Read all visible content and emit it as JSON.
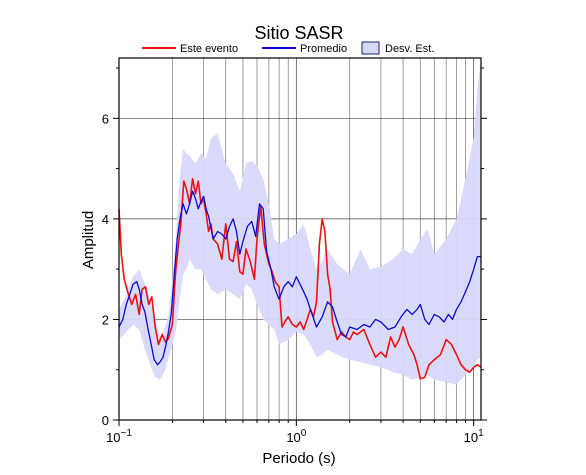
{
  "chart_data": {
    "type": "line",
    "title": "Sitio SASR",
    "xlabel": "Periodo (s)",
    "ylabel": "Amplitud",
    "xscale": "log",
    "xlim": [
      0.1,
      11
    ],
    "ylim": [
      0,
      7.2
    ],
    "grid": true,
    "legend_position": "top",
    "x_ticks": [
      {
        "value": 0.1,
        "base": "10",
        "exp": "−1"
      },
      {
        "value": 1,
        "base": "10",
        "exp": "0"
      },
      {
        "value": 10,
        "base": "10",
        "exp": "1"
      }
    ],
    "y_ticks": [
      {
        "value": 0,
        "label": "0"
      },
      {
        "value": 2,
        "label": "2"
      },
      {
        "value": 4,
        "label": "4"
      },
      {
        "value": 6,
        "label": "6"
      }
    ],
    "legend": {
      "este": "Este evento",
      "promedio": "Promedio",
      "desv": "Desv. Est."
    },
    "colors": {
      "este": "#ee1111",
      "promedio": "#0b0bd6",
      "band_fill": "#d8d8fb",
      "band_edge": "#1a1a8a"
    },
    "series": [
      {
        "name": "Este evento",
        "x": [
          0.1,
          0.103,
          0.107,
          0.112,
          0.118,
          0.124,
          0.13,
          0.135,
          0.141,
          0.147,
          0.153,
          0.16,
          0.167,
          0.175,
          0.183,
          0.19,
          0.2,
          0.208,
          0.215,
          0.223,
          0.232,
          0.24,
          0.25,
          0.26,
          0.27,
          0.28,
          0.29,
          0.3,
          0.31,
          0.32,
          0.33,
          0.34,
          0.36,
          0.38,
          0.4,
          0.42,
          0.44,
          0.46,
          0.48,
          0.5,
          0.52,
          0.55,
          0.58,
          0.6,
          0.63,
          0.66,
          0.7,
          0.73,
          0.76,
          0.8,
          0.83,
          0.86,
          0.9,
          0.95,
          1.0,
          1.05,
          1.1,
          1.15,
          1.2,
          1.25,
          1.3,
          1.35,
          1.4,
          1.45,
          1.5,
          1.55,
          1.6,
          1.7,
          1.8,
          1.9,
          2.0,
          2.1,
          2.2,
          2.4,
          2.6,
          2.8,
          3.0,
          3.2,
          3.4,
          3.6,
          3.8,
          4.0,
          4.3,
          4.6,
          4.8,
          5.0,
          5.3,
          5.6,
          6.0,
          6.5,
          7.0,
          7.5,
          8.0,
          8.5,
          9.0,
          9.5,
          10.0,
          10.5,
          11.0
        ],
        "y": [
          4.2,
          3.3,
          2.8,
          2.55,
          2.3,
          2.5,
          2.1,
          2.6,
          2.65,
          2.3,
          2.45,
          1.85,
          1.5,
          1.7,
          1.55,
          1.62,
          1.9,
          2.9,
          3.4,
          3.9,
          4.75,
          4.6,
          4.3,
          4.8,
          4.5,
          4.75,
          4.3,
          4.4,
          4.1,
          3.75,
          3.9,
          3.6,
          3.5,
          3.2,
          3.9,
          3.2,
          3.15,
          3.55,
          2.95,
          2.9,
          3.4,
          3.15,
          2.8,
          3.6,
          4.25,
          3.5,
          3.1,
          2.95,
          2.75,
          2.65,
          1.85,
          1.95,
          2.05,
          1.9,
          1.85,
          1.95,
          1.8,
          2.0,
          2.2,
          2.05,
          2.35,
          3.5,
          4.0,
          3.75,
          2.9,
          2.6,
          1.95,
          1.6,
          1.75,
          1.65,
          1.6,
          1.75,
          1.7,
          1.8,
          1.5,
          1.25,
          1.35,
          1.25,
          1.65,
          1.45,
          1.6,
          1.85,
          1.5,
          1.3,
          1.1,
          0.82,
          0.85,
          1.1,
          1.2,
          1.3,
          1.6,
          1.5,
          1.3,
          1.1,
          1.0,
          0.95,
          1.05,
          1.1,
          1.05
        ]
      },
      {
        "name": "Promedio",
        "x": [
          0.1,
          0.105,
          0.11,
          0.115,
          0.12,
          0.126,
          0.13,
          0.135,
          0.14,
          0.146,
          0.152,
          0.158,
          0.165,
          0.17,
          0.177,
          0.184,
          0.19,
          0.197,
          0.205,
          0.213,
          0.222,
          0.23,
          0.24,
          0.25,
          0.26,
          0.27,
          0.28,
          0.29,
          0.3,
          0.31,
          0.32,
          0.34,
          0.36,
          0.38,
          0.4,
          0.42,
          0.44,
          0.46,
          0.48,
          0.5,
          0.53,
          0.56,
          0.59,
          0.62,
          0.65,
          0.68,
          0.72,
          0.75,
          0.8,
          0.85,
          0.9,
          0.95,
          1.0,
          1.05,
          1.1,
          1.15,
          1.2,
          1.3,
          1.4,
          1.5,
          1.6,
          1.7,
          1.8,
          1.9,
          2.0,
          2.2,
          2.4,
          2.6,
          2.8,
          3.0,
          3.3,
          3.6,
          3.9,
          4.2,
          4.5,
          4.8,
          5.0,
          5.3,
          5.6,
          6.0,
          6.4,
          6.8,
          7.2,
          7.6,
          8.0,
          8.5,
          9.0,
          9.5,
          10.0,
          10.5,
          11.0
        ],
        "y": [
          1.85,
          2.0,
          2.3,
          2.5,
          2.7,
          2.75,
          2.6,
          2.3,
          2.15,
          1.8,
          1.5,
          1.2,
          1.1,
          1.15,
          1.25,
          1.5,
          1.75,
          2.1,
          2.9,
          3.6,
          4.05,
          4.3,
          4.1,
          4.3,
          4.55,
          4.4,
          4.2,
          4.35,
          4.45,
          4.2,
          4.05,
          3.6,
          3.75,
          3.7,
          3.6,
          3.85,
          4.0,
          3.75,
          3.3,
          3.55,
          3.85,
          3.95,
          3.65,
          4.3,
          4.2,
          3.35,
          3.0,
          2.65,
          2.4,
          2.65,
          2.75,
          2.65,
          2.85,
          2.7,
          2.55,
          2.4,
          2.2,
          1.85,
          2.05,
          2.35,
          2.25,
          1.95,
          1.7,
          1.65,
          1.85,
          1.8,
          1.9,
          1.85,
          2.0,
          1.95,
          1.8,
          1.85,
          2.05,
          2.2,
          2.1,
          2.2,
          2.3,
          2.0,
          1.9,
          2.1,
          2.05,
          1.95,
          2.1,
          2.0,
          2.2,
          2.35,
          2.55,
          2.75,
          3.0,
          3.25,
          3.25
        ]
      }
    ],
    "band": {
      "name": "Desv. Est.",
      "x": [
        0.1,
        0.11,
        0.12,
        0.13,
        0.14,
        0.15,
        0.16,
        0.17,
        0.18,
        0.19,
        0.2,
        0.21,
        0.22,
        0.23,
        0.24,
        0.25,
        0.27,
        0.29,
        0.31,
        0.33,
        0.36,
        0.4,
        0.44,
        0.48,
        0.52,
        0.56,
        0.6,
        0.65,
        0.7,
        0.75,
        0.8,
        0.9,
        1.0,
        1.1,
        1.2,
        1.3,
        1.4,
        1.5,
        1.7,
        2.0,
        2.3,
        2.6,
        3.0,
        3.5,
        4.0,
        4.5,
        5.0,
        5.5,
        6.0,
        7.0,
        8.0,
        9.0,
        10.0,
        10.5,
        11.0
      ],
      "upper": [
        2.2,
        2.5,
        2.85,
        3.0,
        2.7,
        2.4,
        2.0,
        1.65,
        1.8,
        2.1,
        2.8,
        3.7,
        4.8,
        5.4,
        5.3,
        5.25,
        5.1,
        5.3,
        5.2,
        5.6,
        5.7,
        5.1,
        4.9,
        4.55,
        5.1,
        5.15,
        5.05,
        4.8,
        4.3,
        3.6,
        3.5,
        3.6,
        3.7,
        3.9,
        3.4,
        3.0,
        3.15,
        3.4,
        3.1,
        2.9,
        3.4,
        3.0,
        3.05,
        3.2,
        3.4,
        3.3,
        3.6,
        3.8,
        3.3,
        3.6,
        4.0,
        4.8,
        5.6,
        6.6,
        7.2
      ],
      "lower": [
        1.6,
        1.75,
        1.9,
        1.8,
        1.4,
        1.1,
        0.85,
        0.8,
        0.95,
        1.2,
        1.5,
        1.8,
        2.4,
        2.9,
        3.0,
        3.2,
        3.0,
        3.0,
        2.8,
        2.6,
        2.5,
        2.6,
        2.5,
        2.4,
        2.7,
        2.6,
        2.3,
        2.0,
        1.9,
        1.8,
        1.5,
        1.6,
        1.75,
        1.7,
        1.5,
        1.25,
        1.3,
        1.4,
        1.3,
        1.2,
        1.15,
        1.1,
        1.05,
        0.95,
        0.9,
        0.8,
        0.85,
        0.9,
        0.8,
        0.75,
        0.7,
        0.9,
        1.05,
        1.2,
        1.25
      ]
    }
  }
}
